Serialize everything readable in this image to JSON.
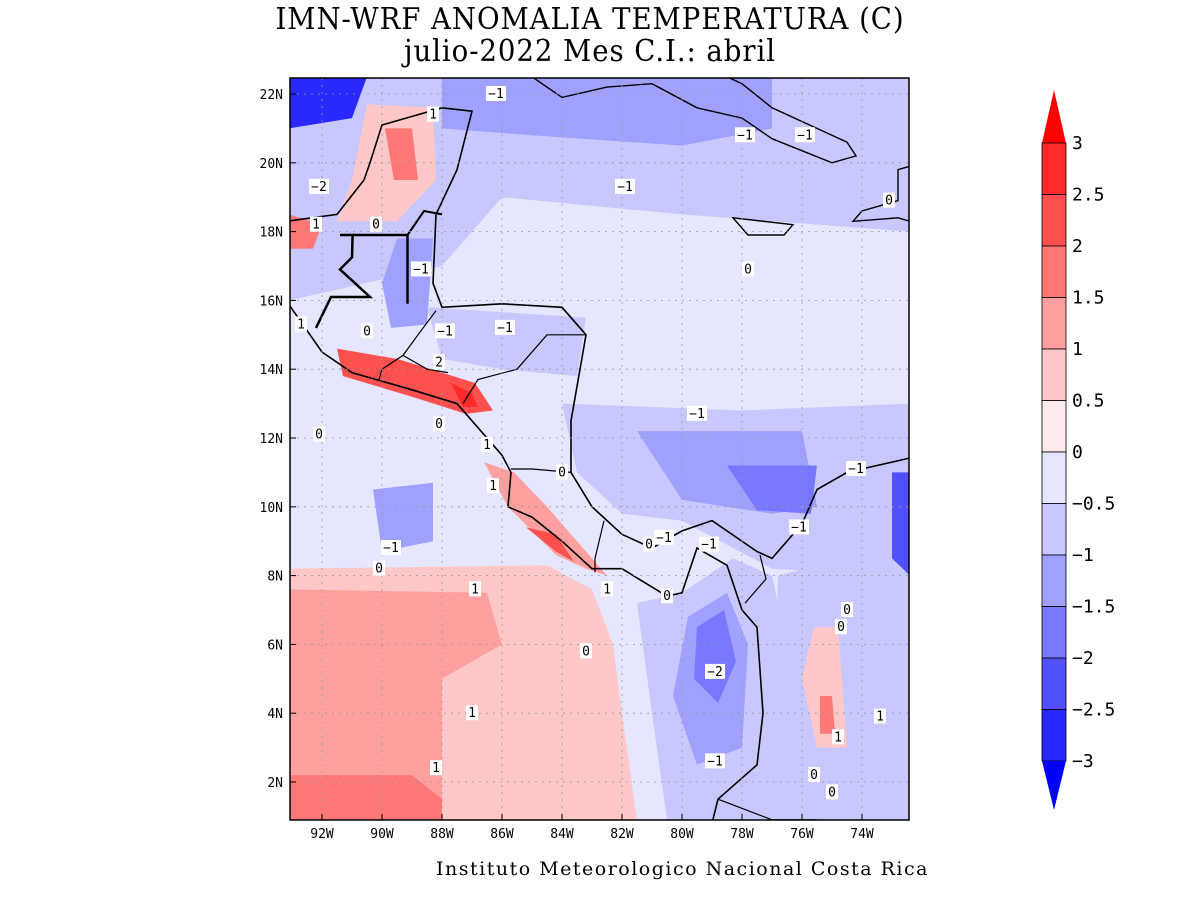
{
  "title_line1": "IMN-WRF  ANOMALIA TEMPERATURA (C)",
  "title_line2": "julio-2022 Mes C.I.: abril",
  "footer": "Instituto Meteorologico Nacional Costa Rica",
  "chart_data": {
    "type": "heatmap",
    "title": "IMN-WRF  ANOMALIA TEMPERATURA (C)",
    "subtitle": "julio-2022 Mes C.I.: abril",
    "lon_range": [
      -93.1,
      -72.4
    ],
    "lat_range": [
      0.9,
      22.5
    ],
    "x_ticks": [
      {
        "v": -92,
        "label": "92W"
      },
      {
        "v": -90,
        "label": "90W"
      },
      {
        "v": -88,
        "label": "88W"
      },
      {
        "v": -86,
        "label": "86W"
      },
      {
        "v": -84,
        "label": "84W"
      },
      {
        "v": -82,
        "label": "82W"
      },
      {
        "v": -80,
        "label": "80W"
      },
      {
        "v": -78,
        "label": "78W"
      },
      {
        "v": -76,
        "label": "76W"
      },
      {
        "v": -74,
        "label": "74W"
      }
    ],
    "y_ticks": [
      {
        "v": 2,
        "label": "2N"
      },
      {
        "v": 4,
        "label": "4N"
      },
      {
        "v": 6,
        "label": "6N"
      },
      {
        "v": 8,
        "label": "8N"
      },
      {
        "v": 10,
        "label": "10N"
      },
      {
        "v": 12,
        "label": "12N"
      },
      {
        "v": 14,
        "label": "14N"
      },
      {
        "v": 16,
        "label": "16N"
      },
      {
        "v": 18,
        "label": "18N"
      },
      {
        "v": 20,
        "label": "20N"
      },
      {
        "v": 22,
        "label": "22N"
      }
    ],
    "grid": true,
    "colorbar": {
      "placement": "right",
      "labels": [
        "3",
        "2.5",
        "2",
        "1.5",
        "1",
        "0.5",
        "0",
        "-0.5",
        "-1",
        "-1.5",
        "-2",
        "-2.5",
        "-3"
      ],
      "colors_top_to_bottom": [
        "#ff0000",
        "#ff2a2a",
        "#ff5050",
        "#ff7878",
        "#ffa0a0",
        "#ffc8c8",
        "#ffebeb",
        "#e6e6ff",
        "#c8c8ff",
        "#a0a0ff",
        "#7878ff",
        "#5050ff",
        "#2828ff",
        "#0000ff"
      ]
    },
    "anomaly_regions": [
      {
        "color": "#c8c8ff",
        "pts": [
          [
            -93.1,
            22.5
          ],
          [
            -72.4,
            22.5
          ],
          [
            -72.4,
            18
          ],
          [
            -80,
            18.5
          ],
          [
            -86,
            19
          ],
          [
            -88,
            17
          ],
          [
            -93.1,
            16
          ]
        ]
      },
      {
        "color": "#a0a0ff",
        "pts": [
          [
            -88,
            22.5
          ],
          [
            -77,
            22.5
          ],
          [
            -77,
            21
          ],
          [
            -80,
            20.5
          ],
          [
            -85,
            20.8
          ],
          [
            -88,
            21
          ]
        ]
      },
      {
        "color": "#2828ff",
        "pts": [
          [
            -93.1,
            22.5
          ],
          [
            -90.5,
            22.5
          ],
          [
            -91,
            21.3
          ],
          [
            -93.1,
            21
          ]
        ]
      },
      {
        "color": "#ffc8c8",
        "pts": [
          [
            -90.5,
            21.7
          ],
          [
            -88.3,
            21.6
          ],
          [
            -88.2,
            19.5
          ],
          [
            -89.5,
            18.3
          ],
          [
            -91.5,
            18.3
          ],
          [
            -91,
            19.5
          ]
        ]
      },
      {
        "color": "#ff7878",
        "pts": [
          [
            -89.9,
            21
          ],
          [
            -89,
            21
          ],
          [
            -88.8,
            19.5
          ],
          [
            -89.6,
            19.5
          ]
        ]
      },
      {
        "color": "#ff7878",
        "pts": [
          [
            -93.1,
            18.5
          ],
          [
            -92,
            18.2
          ],
          [
            -92.3,
            17.5
          ],
          [
            -93.1,
            17.5
          ]
        ]
      },
      {
        "color": "#a0a0ff",
        "pts": [
          [
            -89.5,
            17.8
          ],
          [
            -88.3,
            17.8
          ],
          [
            -88.5,
            15.3
          ],
          [
            -89.7,
            15.2
          ],
          [
            -90,
            16.5
          ]
        ]
      },
      {
        "color": "#c8c8ff",
        "pts": [
          [
            -88.5,
            15.8
          ],
          [
            -83.2,
            15.5
          ],
          [
            -83.5,
            13.8
          ],
          [
            -86,
            14
          ],
          [
            -88,
            14.3
          ]
        ]
      },
      {
        "color": "#ff5050",
        "pts": [
          [
            -91.5,
            14.6
          ],
          [
            -89.5,
            14.3
          ],
          [
            -88,
            13.9
          ],
          [
            -86.9,
            13.6
          ],
          [
            -86.3,
            12.8
          ],
          [
            -87.2,
            12.7
          ],
          [
            -89,
            13.2
          ],
          [
            -91.3,
            13.8
          ]
        ]
      },
      {
        "color": "#ff2a2a",
        "pts": [
          [
            -87.7,
            13.6
          ],
          [
            -87,
            13.3
          ],
          [
            -86.8,
            12.9
          ],
          [
            -87.3,
            12.9
          ]
        ]
      },
      {
        "color": "#ffc8c8",
        "pts": [
          [
            -93.1,
            8.2
          ],
          [
            -84.5,
            8.3
          ],
          [
            -83,
            7.6
          ],
          [
            -82.3,
            6
          ],
          [
            -82,
            4
          ],
          [
            -81.5,
            0.9
          ],
          [
            -93.1,
            0.9
          ]
        ]
      },
      {
        "color": "#ffa0a0",
        "pts": [
          [
            -93.1,
            7.6
          ],
          [
            -86.5,
            7.5
          ],
          [
            -86,
            6
          ],
          [
            -88,
            5
          ],
          [
            -88,
            0.9
          ],
          [
            -93.1,
            0.9
          ]
        ]
      },
      {
        "color": "#ff7878",
        "pts": [
          [
            -93.1,
            2.2
          ],
          [
            -89,
            2.2
          ],
          [
            -88,
            1.5
          ],
          [
            -88,
            0.9
          ],
          [
            -93.1,
            0.9
          ]
        ]
      },
      {
        "color": "#ffa0a0",
        "pts": [
          [
            -86.6,
            11.3
          ],
          [
            -85.8,
            10
          ],
          [
            -84.2,
            8.6
          ],
          [
            -83.2,
            8.2
          ],
          [
            -82.5,
            8
          ],
          [
            -83.5,
            9
          ],
          [
            -84.5,
            10
          ],
          [
            -85.6,
            11
          ]
        ]
      },
      {
        "color": "#ff5050",
        "pts": [
          [
            -85.2,
            9.4
          ],
          [
            -84.2,
            8.7
          ],
          [
            -83.6,
            8.4
          ],
          [
            -84.2,
            9.2
          ]
        ]
      },
      {
        "color": "#a0a0ff",
        "pts": [
          [
            -90.3,
            10.5
          ],
          [
            -88.3,
            10.7
          ],
          [
            -88.3,
            9
          ],
          [
            -90,
            8.7
          ]
        ]
      },
      {
        "color": "#c8c8ff",
        "pts": [
          [
            -84,
            13
          ],
          [
            -78,
            12.8
          ],
          [
            -72.4,
            13
          ],
          [
            -72.4,
            8
          ],
          [
            -77,
            8.2
          ],
          [
            -80,
            9.6
          ],
          [
            -82,
            9.8
          ],
          [
            -83.5,
            11
          ]
        ]
      },
      {
        "color": "#a0a0ff",
        "pts": [
          [
            -81.5,
            12.2
          ],
          [
            -76,
            12.2
          ],
          [
            -75.5,
            10
          ],
          [
            -77,
            9.8
          ],
          [
            -80,
            10.2
          ]
        ]
      },
      {
        "color": "#7878ff",
        "pts": [
          [
            -78.5,
            11.2
          ],
          [
            -75.5,
            11.2
          ],
          [
            -75.7,
            9.8
          ],
          [
            -77.5,
            9.9
          ]
        ]
      },
      {
        "color": "#c8c8ff",
        "pts": [
          [
            -81.5,
            7.2
          ],
          [
            -80,
            7.5
          ],
          [
            -78.3,
            8.5
          ],
          [
            -77,
            8
          ],
          [
            -76,
            4
          ],
          [
            -77,
            0.9
          ],
          [
            -80.5,
            0.9
          ],
          [
            -81,
            4
          ]
        ]
      },
      {
        "color": "#a0a0ff",
        "pts": [
          [
            -79.8,
            6.8
          ],
          [
            -78.5,
            7.5
          ],
          [
            -77.8,
            6
          ],
          [
            -78,
            3
          ],
          [
            -79.5,
            2.5
          ],
          [
            -80.3,
            4.5
          ]
        ]
      },
      {
        "color": "#7878ff",
        "pts": [
          [
            -79.5,
            6.5
          ],
          [
            -78.6,
            7
          ],
          [
            -78.2,
            5.5
          ],
          [
            -78.8,
            4.3
          ],
          [
            -79.6,
            5
          ]
        ]
      },
      {
        "color": "#c8c8ff",
        "pts": [
          [
            -76.8,
            8
          ],
          [
            -72.4,
            9
          ],
          [
            -72.4,
            0.9
          ],
          [
            -77,
            0.9
          ]
        ]
      },
      {
        "color": "#ffc8c8",
        "pts": [
          [
            -75.6,
            6.5
          ],
          [
            -74.8,
            6.5
          ],
          [
            -74.5,
            3
          ],
          [
            -75.5,
            3
          ],
          [
            -76,
            5
          ]
        ]
      },
      {
        "color": "#ff7878",
        "pts": [
          [
            -75.4,
            4.5
          ],
          [
            -75,
            4.5
          ],
          [
            -74.9,
            3.4
          ],
          [
            -75.4,
            3.4
          ]
        ]
      },
      {
        "color": "#5050ff",
        "pts": [
          [
            -73,
            11
          ],
          [
            -72.4,
            11
          ],
          [
            -72.4,
            8
          ],
          [
            -73,
            8.5
          ]
        ]
      }
    ],
    "contour_labels": [
      {
        "text": "1",
        "lon": -88.3,
        "lat": 21.4
      },
      {
        "text": "-1",
        "lon": -86.2,
        "lat": 22
      },
      {
        "text": "-2",
        "lon": -92.1,
        "lat": 19.3
      },
      {
        "text": "1",
        "lon": -92.2,
        "lat": 18.2
      },
      {
        "text": "0",
        "lon": -90.2,
        "lat": 18.2
      },
      {
        "text": "-1",
        "lon": -88.7,
        "lat": 16.9
      },
      {
        "text": "-1",
        "lon": -81.9,
        "lat": 19.3
      },
      {
        "text": "-1",
        "lon": -77.9,
        "lat": 20.8
      },
      {
        "text": "-1",
        "lon": -75.9,
        "lat": 20.8
      },
      {
        "text": "0",
        "lon": -73.1,
        "lat": 18.9
      },
      {
        "text": "0",
        "lon": -77.8,
        "lat": 16.9
      },
      {
        "text": "1",
        "lon": -92.7,
        "lat": 15.3
      },
      {
        "text": "0",
        "lon": -90.5,
        "lat": 15.1
      },
      {
        "text": "-1",
        "lon": -87.9,
        "lat": 15.1
      },
      {
        "text": "-1",
        "lon": -85.9,
        "lat": 15.2
      },
      {
        "text": "2",
        "lon": -88.1,
        "lat": 14.2
      },
      {
        "text": "0",
        "lon": -92.1,
        "lat": 12.1
      },
      {
        "text": "0",
        "lon": -88.1,
        "lat": 12.4
      },
      {
        "text": "1",
        "lon": -86.5,
        "lat": 11.8
      },
      {
        "text": "0",
        "lon": -84,
        "lat": 11
      },
      {
        "text": "1",
        "lon": -86.3,
        "lat": 10.6
      },
      {
        "text": "-1",
        "lon": -79.5,
        "lat": 12.7
      },
      {
        "text": "-1",
        "lon": -74.2,
        "lat": 11.1
      },
      {
        "text": "-1",
        "lon": -89.7,
        "lat": 8.8
      },
      {
        "text": "0",
        "lon": -90.1,
        "lat": 8.2
      },
      {
        "text": "1",
        "lon": -86.9,
        "lat": 7.6
      },
      {
        "text": "-1",
        "lon": -80.6,
        "lat": 9.1
      },
      {
        "text": "0",
        "lon": -81.1,
        "lat": 8.9
      },
      {
        "text": "-1",
        "lon": -79.1,
        "lat": 8.9
      },
      {
        "text": "-1",
        "lon": -76.1,
        "lat": 9.4
      },
      {
        "text": "1",
        "lon": -82.5,
        "lat": 7.6
      },
      {
        "text": "0",
        "lon": -80.5,
        "lat": 7.4
      },
      {
        "text": "0",
        "lon": -74.5,
        "lat": 7
      },
      {
        "text": "0",
        "lon": -74.7,
        "lat": 6.5
      },
      {
        "text": "0",
        "lon": -83.2,
        "lat": 5.8
      },
      {
        "text": "-2",
        "lon": -78.9,
        "lat": 5.2
      },
      {
        "text": "1",
        "lon": -87,
        "lat": 4
      },
      {
        "text": "1",
        "lon": -74.8,
        "lat": 3.3
      },
      {
        "text": "1",
        "lon": -73.4,
        "lat": 3.9
      },
      {
        "text": "1",
        "lon": -88.2,
        "lat": 2.4
      },
      {
        "text": "-1",
        "lon": -78.9,
        "lat": 2.6
      },
      {
        "text": "0",
        "lon": -75.6,
        "lat": 2.2
      },
      {
        "text": "0",
        "lon": -75,
        "lat": 1.7
      }
    ]
  }
}
